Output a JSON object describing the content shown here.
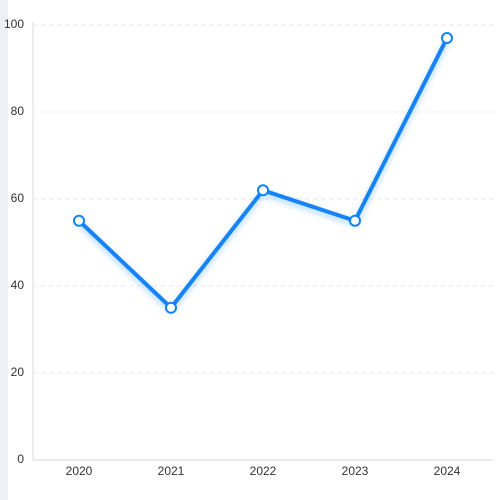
{
  "chart_data": {
    "type": "line",
    "categories": [
      "2020",
      "2021",
      "2022",
      "2023",
      "2024"
    ],
    "values": [
      55,
      35,
      62,
      55,
      97
    ],
    "color": "#1283f7",
    "ylim": [
      0,
      100
    ],
    "yticks": [
      0,
      20,
      40,
      60,
      80,
      100
    ],
    "grid": true
  }
}
